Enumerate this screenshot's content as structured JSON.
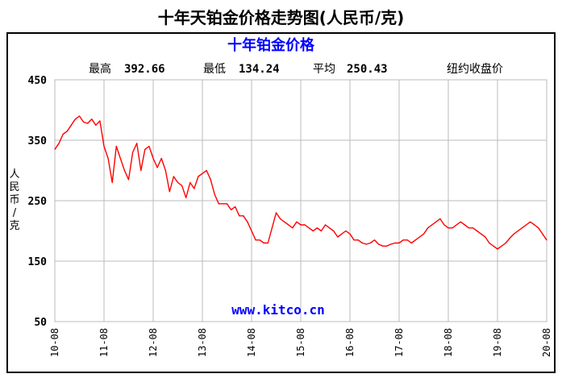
{
  "page": {
    "title": "十年天铂金价格走势图(人民币/克)"
  },
  "chart_data": {
    "type": "line",
    "title": "十年铂金价格",
    "stats": [
      {
        "label": "最高",
        "value": "392.66"
      },
      {
        "label": "最低",
        "value": "134.24"
      },
      {
        "label": "平均",
        "value": "250.43"
      }
    ],
    "price_type": "纽约收盘价",
    "ylabel": "人民币/克",
    "watermark": "www.kitco.cn",
    "ylim": [
      50,
      450
    ],
    "y_ticks": [
      450,
      350,
      250,
      150,
      50
    ],
    "x_ticks": [
      "10-08",
      "11-08",
      "12-08",
      "13-08",
      "14-08",
      "15-08",
      "16-08",
      "17-08",
      "18-08",
      "19-08",
      "20-08"
    ],
    "xlim": [
      0,
      120
    ],
    "grid": true,
    "line_color": "#ff0000",
    "title_color": "#0000ff",
    "watermark_color": "#0000ff",
    "series": [
      {
        "x": [
          0,
          1,
          2,
          3,
          4,
          5,
          6,
          7,
          8,
          9,
          10,
          11,
          12,
          13,
          14,
          15,
          16,
          17,
          18,
          19,
          20,
          21,
          22,
          23,
          24,
          25,
          26,
          27,
          28,
          29,
          30,
          31,
          32,
          33,
          34,
          35,
          36,
          37,
          38,
          39,
          40,
          41,
          42,
          43,
          44,
          45,
          46,
          47,
          48,
          49,
          50,
          51,
          52,
          53,
          54,
          55,
          56,
          57,
          58,
          59,
          60,
          61,
          62,
          63,
          64,
          65,
          66,
          67,
          68,
          69,
          70,
          71,
          72,
          73,
          74,
          75,
          76,
          77,
          78,
          79,
          80,
          81,
          82,
          83,
          84,
          85,
          86,
          87,
          88,
          89,
          90,
          91,
          92,
          93,
          94,
          95,
          96,
          97,
          98,
          99,
          100,
          101,
          102,
          103,
          104,
          105,
          106,
          107,
          108,
          109,
          110,
          111,
          112,
          113,
          114,
          115,
          116,
          117,
          118,
          119,
          120
        ],
        "values": [
          335,
          345,
          360,
          365,
          375,
          385,
          390,
          380,
          378,
          385,
          375,
          382,
          340,
          320,
          280,
          340,
          320,
          300,
          285,
          330,
          345,
          300,
          335,
          340,
          320,
          305,
          320,
          300,
          265,
          290,
          280,
          275,
          255,
          280,
          270,
          290,
          295,
          300,
          285,
          260,
          245,
          245,
          245,
          235,
          240,
          225,
          225,
          215,
          200,
          185,
          185,
          180,
          180,
          205,
          230,
          220,
          215,
          210,
          205,
          215,
          210,
          210,
          205,
          200,
          205,
          200,
          210,
          205,
          200,
          190,
          195,
          200,
          195,
          185,
          185,
          180,
          178,
          180,
          185,
          178,
          175,
          175,
          178,
          180,
          180,
          185,
          185,
          180,
          185,
          190,
          195,
          205,
          210,
          215,
          220,
          210,
          205,
          205,
          210,
          215,
          210,
          205,
          205,
          200,
          195,
          190,
          180,
          175,
          170,
          175,
          180,
          188,
          195,
          200,
          205,
          210,
          215,
          210,
          205,
          195,
          185
        ]
      }
    ]
  }
}
